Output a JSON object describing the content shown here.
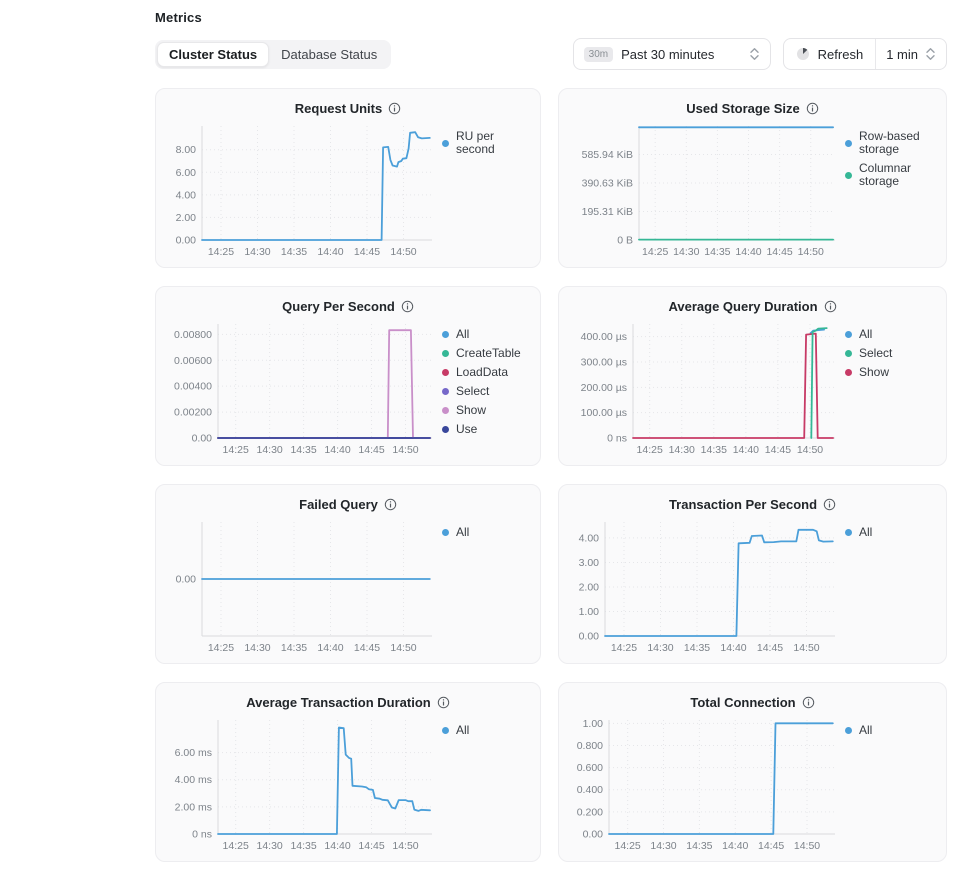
{
  "header": {
    "title": "Metrics",
    "tabs": [
      {
        "label": "Cluster Status",
        "active": true
      },
      {
        "label": "Database Status",
        "active": false
      }
    ],
    "time_range": {
      "badge": "30m",
      "label": "Past 30 minutes"
    },
    "refresh": {
      "label": "Refresh",
      "interval": "1 min"
    }
  },
  "icons": {
    "info-icon": "circled-i",
    "chevron-updown-icon": "up-down-chevrons",
    "refresh-timer-icon": "pie-timer-circle"
  },
  "colors": {
    "blue": "#4b9fd9",
    "teal": "#35b796",
    "crimson": "#c73a66",
    "violet": "#7668c9",
    "orchid": "#c98fc9",
    "navy": "#39479b",
    "grid": "#e5e6e9",
    "axis": "#d9dbde",
    "card_bg": "#fafafb"
  },
  "chart_data": [
    {
      "type": "line",
      "title": "Request Units",
      "xlim": [
        862.4,
        893.9
      ],
      "x_ticks": [
        {
          "v": 865,
          "label": "14:25"
        },
        {
          "v": 870,
          "label": "14:30"
        },
        {
          "v": 875,
          "label": "14:35"
        },
        {
          "v": 880,
          "label": "14:40"
        },
        {
          "v": 885,
          "label": "14:45"
        },
        {
          "v": 890,
          "label": "14:50"
        }
      ],
      "ylim": [
        0,
        10.1
      ],
      "y_ticks": [
        {
          "v": 0,
          "label": "0.00"
        },
        {
          "v": 2,
          "label": "2.00"
        },
        {
          "v": 4,
          "label": "4.00"
        },
        {
          "v": 6,
          "label": "6.00"
        },
        {
          "v": 8,
          "label": "8.00"
        }
      ],
      "legend": [
        {
          "label": "RU per second",
          "color": "#4b9fd9"
        }
      ],
      "series": [
        {
          "name": "RU per second",
          "color": "#4b9fd9",
          "points": [
            [
              862.4,
              0
            ],
            [
              887.0,
              0
            ],
            [
              887.2,
              8.2
            ],
            [
              887.9,
              8.25
            ],
            [
              888.2,
              7.1
            ],
            [
              888.5,
              6.6
            ],
            [
              889.1,
              6.5
            ],
            [
              889.3,
              6.9
            ],
            [
              889.7,
              7.0
            ],
            [
              889.9,
              7.2
            ],
            [
              890.4,
              7.25
            ],
            [
              890.7,
              8.1
            ],
            [
              890.9,
              9.5
            ],
            [
              891.6,
              9.55
            ],
            [
              892.0,
              9.1
            ],
            [
              892.5,
              9.0
            ],
            [
              893.6,
              9.05
            ]
          ]
        }
      ]
    },
    {
      "type": "line",
      "title": "Used Storage Size",
      "xlim": [
        862.4,
        893.9
      ],
      "x_ticks": [
        {
          "v": 865,
          "label": "14:25"
        },
        {
          "v": 870,
          "label": "14:30"
        },
        {
          "v": 875,
          "label": "14:35"
        },
        {
          "v": 880,
          "label": "14:40"
        },
        {
          "v": 885,
          "label": "14:45"
        },
        {
          "v": 890,
          "label": "14:50"
        }
      ],
      "ylim": [
        0,
        781.25
      ],
      "y_ticks": [
        {
          "v": 0,
          "label": "0 B"
        },
        {
          "v": 195.31,
          "label": "195.31 KiB"
        },
        {
          "v": 390.63,
          "label": "390.63 KiB"
        },
        {
          "v": 585.94,
          "label": "585.94 KiB"
        }
      ],
      "legend": [
        {
          "label": "Row-based storage",
          "color": "#4b9fd9"
        },
        {
          "label": "Columnar storage",
          "color": "#35b796"
        }
      ],
      "series": [
        {
          "name": "Row-based storage",
          "color": "#4b9fd9",
          "points": [
            [
              862.4,
              772
            ],
            [
              893.6,
              772
            ]
          ]
        },
        {
          "name": "Columnar storage",
          "color": "#35b796",
          "points": [
            [
              862.4,
              3
            ],
            [
              893.6,
              3
            ]
          ]
        }
      ]
    },
    {
      "type": "line",
      "title": "Query Per Second",
      "xlim": [
        862.4,
        893.9
      ],
      "x_ticks": [
        {
          "v": 865,
          "label": "14:25"
        },
        {
          "v": 870,
          "label": "14:30"
        },
        {
          "v": 875,
          "label": "14:35"
        },
        {
          "v": 880,
          "label": "14:40"
        },
        {
          "v": 885,
          "label": "14:45"
        },
        {
          "v": 890,
          "label": "14:50"
        }
      ],
      "ylim": [
        0,
        0.0088
      ],
      "y_ticks": [
        {
          "v": 0,
          "label": "0.00"
        },
        {
          "v": 0.002,
          "label": "0.00200"
        },
        {
          "v": 0.004,
          "label": "0.00400"
        },
        {
          "v": 0.006,
          "label": "0.00600"
        },
        {
          "v": 0.008,
          "label": "0.00800"
        }
      ],
      "legend": [
        {
          "label": "All",
          "color": "#4b9fd9"
        },
        {
          "label": "CreateTable",
          "color": "#35b796"
        },
        {
          "label": "LoadData",
          "color": "#c73a66"
        },
        {
          "label": "Select",
          "color": "#7668c9"
        },
        {
          "label": "Show",
          "color": "#c98fc9"
        },
        {
          "label": "Use",
          "color": "#39479b"
        }
      ],
      "series": [
        {
          "name": "All",
          "color": "#4b9fd9",
          "points": [
            [
              862.4,
              0
            ],
            [
              893.6,
              0
            ]
          ]
        },
        {
          "name": "CreateTable",
          "color": "#35b796",
          "points": [
            [
              862.4,
              0
            ],
            [
              893.6,
              0
            ]
          ]
        },
        {
          "name": "LoadData",
          "color": "#c73a66",
          "points": [
            [
              862.4,
              0
            ],
            [
              893.6,
              0
            ]
          ]
        },
        {
          "name": "Select",
          "color": "#7668c9",
          "points": [
            [
              862.4,
              0
            ],
            [
              893.6,
              0
            ]
          ]
        },
        {
          "name": "Show",
          "color": "#c98fc9",
          "points": [
            [
              862.4,
              0
            ],
            [
              887.4,
              0
            ],
            [
              887.6,
              0.00832
            ],
            [
              890.8,
              0.00832
            ],
            [
              891.1,
              0
            ],
            [
              893.6,
              0
            ]
          ]
        },
        {
          "name": "Use",
          "color": "#39479b",
          "points": [
            [
              862.4,
              0
            ],
            [
              893.6,
              0
            ]
          ]
        }
      ]
    },
    {
      "type": "line",
      "title": "Average Query Duration",
      "xlim": [
        862.4,
        893.9
      ],
      "x_ticks": [
        {
          "v": 865,
          "label": "14:25"
        },
        {
          "v": 870,
          "label": "14:30"
        },
        {
          "v": 875,
          "label": "14:35"
        },
        {
          "v": 880,
          "label": "14:40"
        },
        {
          "v": 885,
          "label": "14:45"
        },
        {
          "v": 890,
          "label": "14:50"
        }
      ],
      "ylim": [
        0,
        450
      ],
      "y_ticks": [
        {
          "v": 0,
          "label": "0 ns"
        },
        {
          "v": 100,
          "label": "100.00 µs"
        },
        {
          "v": 200,
          "label": "200.00 µs"
        },
        {
          "v": 300,
          "label": "300.00 µs"
        },
        {
          "v": 400,
          "label": "400.00 µs"
        }
      ],
      "legend": [
        {
          "label": "All",
          "color": "#4b9fd9"
        },
        {
          "label": "Select",
          "color": "#35b796"
        },
        {
          "label": "Show",
          "color": "#c73a66"
        }
      ],
      "series": [
        {
          "name": "All",
          "color": "#4b9fd9",
          "points": [
            [
              890.1,
              414
            ],
            [
              890.5,
              424
            ],
            [
              892.2,
              428
            ]
          ]
        },
        {
          "name": "Show",
          "color": "#c73a66",
          "points": [
            [
              862.4,
              0
            ],
            [
              889.1,
              0
            ],
            [
              889.4,
              408
            ],
            [
              890.9,
              412
            ],
            [
              891.2,
              0
            ],
            [
              893.6,
              0
            ]
          ]
        },
        {
          "name": "Select",
          "color": "#35b796",
          "points": [
            [
              890.2,
              0
            ],
            [
              890.4,
              418
            ],
            [
              890.9,
              424
            ],
            [
              891.3,
              432
            ],
            [
              892.6,
              434
            ]
          ]
        }
      ]
    },
    {
      "type": "line",
      "title": "Failed Query",
      "xlim": [
        862.4,
        893.9
      ],
      "x_ticks": [
        {
          "v": 865,
          "label": "14:25"
        },
        {
          "v": 870,
          "label": "14:30"
        },
        {
          "v": 875,
          "label": "14:35"
        },
        {
          "v": 880,
          "label": "14:40"
        },
        {
          "v": 885,
          "label": "14:45"
        },
        {
          "v": 890,
          "label": "14:50"
        }
      ],
      "ylim": [
        -1,
        1
      ],
      "y_ticks": [
        {
          "v": 0,
          "label": "0.00"
        }
      ],
      "legend": [
        {
          "label": "All",
          "color": "#4b9fd9"
        }
      ],
      "series": [
        {
          "name": "All",
          "color": "#4b9fd9",
          "points": [
            [
              862.4,
              0
            ],
            [
              893.6,
              0
            ]
          ]
        }
      ]
    },
    {
      "type": "line",
      "title": "Transaction Per Second",
      "xlim": [
        862.4,
        893.9
      ],
      "x_ticks": [
        {
          "v": 865,
          "label": "14:25"
        },
        {
          "v": 870,
          "label": "14:30"
        },
        {
          "v": 875,
          "label": "14:35"
        },
        {
          "v": 880,
          "label": "14:40"
        },
        {
          "v": 885,
          "label": "14:45"
        },
        {
          "v": 890,
          "label": "14:50"
        }
      ],
      "ylim": [
        0,
        4.65
      ],
      "y_ticks": [
        {
          "v": 0,
          "label": "0.00"
        },
        {
          "v": 1,
          "label": "1.00"
        },
        {
          "v": 2,
          "label": "2.00"
        },
        {
          "v": 3,
          "label": "3.00"
        },
        {
          "v": 4,
          "label": "4.00"
        }
      ],
      "legend": [
        {
          "label": "All",
          "color": "#4b9fd9"
        }
      ],
      "series": [
        {
          "name": "All",
          "color": "#4b9fd9",
          "points": [
            [
              862.4,
              0
            ],
            [
              880.4,
              0
            ],
            [
              880.7,
              3.78
            ],
            [
              882.2,
              3.8
            ],
            [
              882.5,
              4.08
            ],
            [
              883.9,
              4.1
            ],
            [
              884.2,
              3.82
            ],
            [
              885.5,
              3.83
            ],
            [
              886.5,
              3.86
            ],
            [
              888.6,
              3.86
            ],
            [
              888.9,
              4.33
            ],
            [
              890.9,
              4.33
            ],
            [
              891.4,
              4.27
            ],
            [
              891.7,
              3.9
            ],
            [
              892.3,
              3.85
            ],
            [
              893.6,
              3.86
            ]
          ]
        }
      ]
    },
    {
      "type": "line",
      "title": "Average Transaction Duration",
      "xlim": [
        862.4,
        893.9
      ],
      "x_ticks": [
        {
          "v": 865,
          "label": "14:25"
        },
        {
          "v": 870,
          "label": "14:30"
        },
        {
          "v": 875,
          "label": "14:35"
        },
        {
          "v": 880,
          "label": "14:40"
        },
        {
          "v": 885,
          "label": "14:45"
        },
        {
          "v": 890,
          "label": "14:50"
        }
      ],
      "ylim": [
        0,
        8.4
      ],
      "y_ticks": [
        {
          "v": 0,
          "label": "0 ns"
        },
        {
          "v": 2,
          "label": "2.00 ms"
        },
        {
          "v": 4,
          "label": "4.00 ms"
        },
        {
          "v": 6,
          "label": "6.00 ms"
        }
      ],
      "legend": [
        {
          "label": "All",
          "color": "#4b9fd9"
        }
      ],
      "series": [
        {
          "name": "All",
          "color": "#4b9fd9",
          "points": [
            [
              862.4,
              0
            ],
            [
              879.9,
              0
            ],
            [
              880.2,
              7.85
            ],
            [
              880.9,
              7.8
            ],
            [
              881.2,
              5.85
            ],
            [
              881.7,
              5.6
            ],
            [
              882.0,
              5.55
            ],
            [
              882.2,
              3.55
            ],
            [
              883.6,
              3.5
            ],
            [
              884.2,
              3.45
            ],
            [
              884.6,
              3.3
            ],
            [
              885.2,
              3.25
            ],
            [
              885.5,
              2.65
            ],
            [
              886.2,
              2.6
            ],
            [
              886.6,
              2.52
            ],
            [
              887.4,
              2.48
            ],
            [
              887.7,
              2.2
            ],
            [
              888.0,
              1.95
            ],
            [
              888.5,
              1.88
            ],
            [
              889.0,
              2.5
            ],
            [
              890.0,
              2.5
            ],
            [
              890.4,
              2.42
            ],
            [
              891.0,
              2.42
            ],
            [
              891.3,
              1.8
            ],
            [
              891.9,
              1.7
            ],
            [
              892.3,
              1.78
            ],
            [
              893.6,
              1.75
            ]
          ]
        }
      ]
    },
    {
      "type": "line",
      "title": "Total Connection",
      "xlim": [
        862.4,
        893.9
      ],
      "x_ticks": [
        {
          "v": 865,
          "label": "14:25"
        },
        {
          "v": 870,
          "label": "14:30"
        },
        {
          "v": 875,
          "label": "14:35"
        },
        {
          "v": 880,
          "label": "14:40"
        },
        {
          "v": 885,
          "label": "14:45"
        },
        {
          "v": 890,
          "label": "14:50"
        }
      ],
      "ylim": [
        0,
        1.03
      ],
      "y_ticks": [
        {
          "v": 0,
          "label": "0.00"
        },
        {
          "v": 0.2,
          "label": "0.200"
        },
        {
          "v": 0.4,
          "label": "0.400"
        },
        {
          "v": 0.6,
          "label": "0.600"
        },
        {
          "v": 0.8,
          "label": "0.800"
        },
        {
          "v": 1,
          "label": "1.00"
        }
      ],
      "legend": [
        {
          "label": "All",
          "color": "#4b9fd9"
        }
      ],
      "series": [
        {
          "name": "All",
          "color": "#4b9fd9",
          "points": [
            [
              862.4,
              0
            ],
            [
              885.3,
              0
            ],
            [
              885.6,
              1
            ],
            [
              893.6,
              1
            ]
          ]
        }
      ]
    }
  ]
}
